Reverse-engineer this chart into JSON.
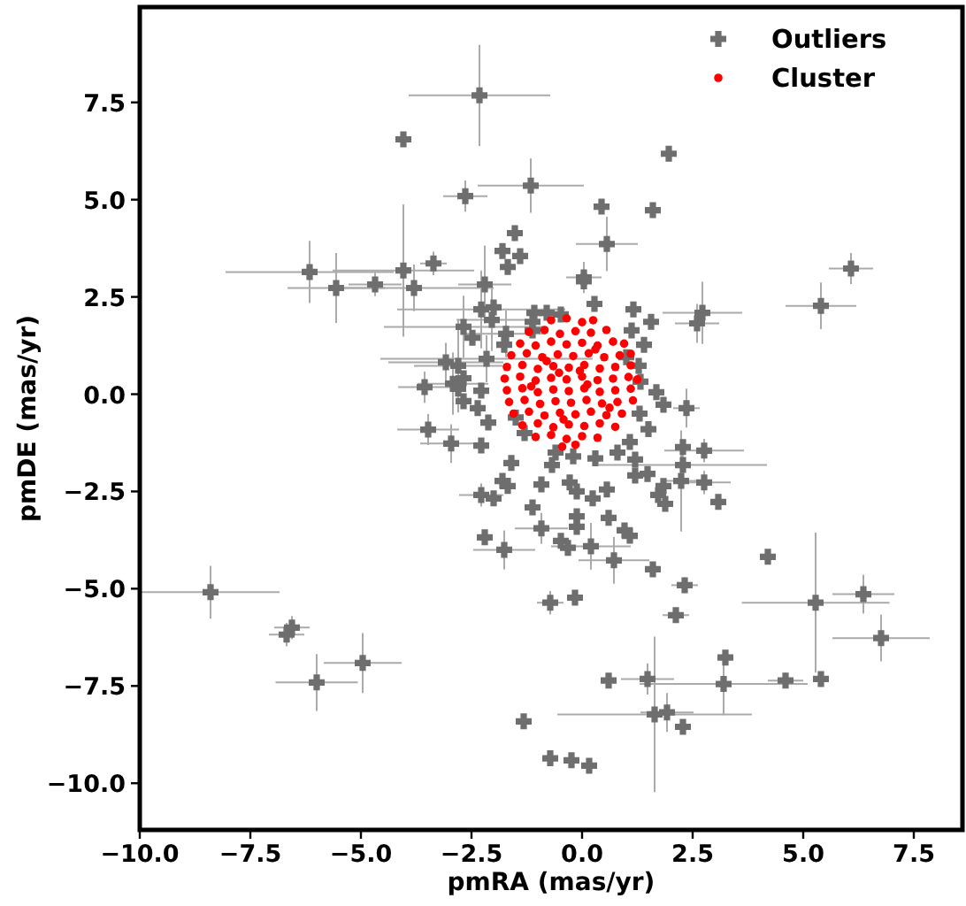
{
  "chart_data": {
    "type": "scatter",
    "xlabel": "pmRA (mas/yr)",
    "ylabel": "pmDE (mas/yr)",
    "legend": "top right",
    "xlim": [
      -10,
      8.6
    ],
    "ylim": [
      -11.2,
      9.95
    ],
    "xticks": [
      {
        "value": -10,
        "label": "−10.0"
      },
      {
        "value": -7.5,
        "label": "−7.5"
      },
      {
        "value": -5,
        "label": "−5.0"
      },
      {
        "value": -2.5,
        "label": "−2.5"
      },
      {
        "value": 0,
        "label": "0.0"
      },
      {
        "value": 2.5,
        "label": "2.5"
      },
      {
        "value": 5,
        "label": "5.0"
      },
      {
        "value": 7.5,
        "label": "7.5"
      }
    ],
    "yticks": [
      {
        "value": 7.5,
        "label": "7.5"
      },
      {
        "value": 5,
        "label": "5.0"
      },
      {
        "value": 2.5,
        "label": "2.5"
      },
      {
        "value": 0,
        "label": "0.0"
      },
      {
        "value": -2.5,
        "label": "−2.5"
      },
      {
        "value": -5,
        "label": "−5.0"
      },
      {
        "value": -7.5,
        "label": "−7.5"
      },
      {
        "value": -10,
        "label": "−10.0"
      }
    ],
    "series": [
      {
        "name": "Outliers",
        "color": "#6e6e6e",
        "marker": "cross",
        "x": [
          -2.32,
          -4.04,
          -2.64,
          -1.16,
          -1.52,
          -1.8,
          -1.4,
          -1.68,
          -6.16,
          -5.56,
          -4.68,
          -4.04,
          -3.8,
          -3.36,
          -2.2,
          -2.28,
          -2.0,
          -2.04,
          -2.68,
          -2.48,
          -1.72,
          -1.76,
          -1.08,
          -1.12,
          -2.16,
          -3.08,
          -2.8,
          -2.68,
          -2.92,
          -3.56,
          -2.8,
          -2.28,
          -2.68,
          -2.36,
          -3.48,
          -2.96,
          -2.28,
          -2.12,
          -1.6,
          -1.8,
          -1.68,
          -2.28,
          -2.0,
          -1.12,
          -0.92,
          -2.2,
          -1.76,
          -0.92,
          -8.4,
          -6.56,
          -6.68,
          -4.96,
          -6.0,
          -1.32,
          1.96,
          0.44,
          1.6,
          0.56,
          0.04,
          0.04,
          6.08,
          5.4,
          2.72,
          2.6,
          1.16,
          1.56,
          1.12,
          0.28,
          -0.8,
          -0.48,
          1.4,
          1.0,
          1.28,
          1.32,
          1.68,
          2.36,
          1.84,
          -1.12,
          2.76,
          2.28,
          2.28,
          2.24,
          2.76,
          3.08,
          1.84,
          1.72,
          1.88,
          1.48,
          1.2,
          1.08,
          1.2,
          0.56,
          0.24,
          -0.12,
          -0.28,
          -0.68,
          -0.12,
          -0.12,
          -0.48,
          -0.32,
          0.2,
          0.6,
          0.96,
          1.08,
          0.72,
          1.6,
          2.32,
          2.12,
          -0.72,
          -0.16,
          4.2,
          5.28,
          6.36,
          6.76,
          3.24,
          3.2,
          4.6,
          5.4,
          1.48,
          0.6,
          1.64,
          1.92,
          2.28,
          -0.72,
          -0.24,
          0.16,
          -0.6,
          -0.2,
          0.3,
          0.8,
          -1.3,
          -1.5,
          1.3,
          1.5
        ],
        "values": [
          7.68,
          6.55,
          5.09,
          5.36,
          4.14,
          3.68,
          3.55,
          3.27,
          3.14,
          2.73,
          2.82,
          3.18,
          2.73,
          3.36,
          2.82,
          2.18,
          2.23,
          1.91,
          1.73,
          1.45,
          1.55,
          1.27,
          2.09,
          1.64,
          0.91,
          0.82,
          0.73,
          0.41,
          0.27,
          0.18,
          0.14,
          0.09,
          -0.18,
          -0.36,
          -0.91,
          -1.27,
          -1.32,
          -0.73,
          -1.77,
          -2.23,
          -2.36,
          -2.59,
          -2.68,
          -2.91,
          -3.45,
          -3.68,
          -4.0,
          -2.32,
          -5.09,
          -6.0,
          -6.18,
          -6.91,
          -7.41,
          -8.41,
          6.18,
          4.82,
          4.73,
          3.86,
          3.0,
          2.9,
          3.23,
          2.27,
          2.09,
          1.82,
          2.18,
          1.86,
          1.64,
          2.32,
          2.09,
          2.05,
          1.27,
          0.95,
          0.73,
          0.32,
          0.05,
          -0.36,
          -0.27,
          1.86,
          -1.45,
          -1.36,
          -1.82,
          -2.23,
          -2.27,
          -2.77,
          -2.36,
          -2.59,
          -2.82,
          -2.05,
          -2.09,
          -1.23,
          -1.68,
          -2.45,
          -2.68,
          -2.5,
          -2.27,
          -1.82,
          -3.14,
          -3.41,
          -3.77,
          -3.95,
          -3.91,
          -3.18,
          -3.5,
          -3.64,
          -4.27,
          -4.5,
          -4.91,
          -5.68,
          -5.36,
          -5.23,
          -4.18,
          -5.36,
          -5.14,
          -6.27,
          -6.77,
          -7.45,
          -7.36,
          -7.32,
          -7.32,
          -7.36,
          -8.23,
          -8.18,
          -8.55,
          -9.36,
          -9.41,
          -9.55,
          -1.5,
          -1.6,
          -1.65,
          -1.5,
          -1.0,
          -0.6,
          -0.5,
          -0.9
        ],
        "xerrors": [
          1.6,
          0.15,
          0.5,
          1.2,
          null,
          null,
          null,
          null,
          1.9,
          1.1,
          0.6,
          1.6,
          1.8,
          0.3,
          0.6,
          1.9,
          null,
          0.8,
          1.8,
          null,
          0.9,
          null,
          null,
          null,
          2.4,
          1.3,
          1.0,
          null,
          0.8,
          0.6,
          null,
          null,
          null,
          null,
          0.7,
          0.7,
          null,
          null,
          null,
          null,
          null,
          0.5,
          null,
          null,
          0.6,
          null,
          0.7,
          null,
          1.56,
          0.4,
          0.4,
          0.88,
          0.93,
          null,
          null,
          null,
          null,
          0.7,
          0.4,
          null,
          0.5,
          0.8,
          0.9,
          0.5,
          null,
          null,
          null,
          null,
          null,
          null,
          null,
          null,
          null,
          null,
          null,
          0.3,
          null,
          null,
          0.9,
          null,
          1.9,
          0.4,
          0.6,
          null,
          null,
          null,
          null,
          null,
          null,
          null,
          null,
          null,
          null,
          null,
          null,
          null,
          null,
          null,
          null,
          null,
          0.9,
          null,
          null,
          null,
          0.8,
          null,
          0.3,
          0.3,
          0.3,
          null,
          null,
          1.67,
          0.7,
          1.1,
          null,
          1.9,
          0.4,
          null,
          0.6,
          null,
          2.2,
          0.6,
          null,
          null,
          null,
          null,
          null,
          null,
          null,
          null,
          null,
          null,
          null,
          null
        ],
        "errors": [
          1.3,
          0.2,
          0.4,
          0.7,
          null,
          null,
          null,
          null,
          0.8,
          0.9,
          0.3,
          1.7,
          0.6,
          0.3,
          1.0,
          1.0,
          null,
          0.8,
          0.8,
          null,
          0.6,
          null,
          null,
          null,
          0.6,
          0.5,
          1.2,
          null,
          0.8,
          0.4,
          null,
          null,
          null,
          null,
          0.4,
          0.5,
          null,
          null,
          null,
          null,
          null,
          0.3,
          null,
          null,
          0.4,
          null,
          0.5,
          null,
          0.68,
          0.3,
          0.3,
          0.77,
          0.73,
          null,
          null,
          null,
          null,
          0.7,
          0.4,
          null,
          0.4,
          0.6,
          0.8,
          0.5,
          null,
          null,
          null,
          null,
          null,
          null,
          null,
          null,
          null,
          null,
          null,
          0.5,
          null,
          null,
          0.3,
          null,
          0.3,
          1.3,
          0.3,
          null,
          null,
          null,
          null,
          null,
          null,
          null,
          null,
          null,
          null,
          null,
          null,
          null,
          null,
          null,
          null,
          null,
          0.6,
          null,
          null,
          null,
          0.6,
          null,
          0.2,
          0.2,
          0.3,
          null,
          null,
          1.8,
          0.5,
          0.6,
          null,
          0.8,
          0.2,
          null,
          0.4,
          null,
          2.0,
          0.5,
          null,
          null,
          null,
          null,
          null,
          null,
          null,
          null,
          null,
          null,
          null,
          null
        ]
      },
      {
        "name": "Cluster",
        "color": "#ff0000",
        "marker": "circle",
        "x": [
          -0.7,
          -0.35,
          0.0,
          0.25,
          -1.2,
          -0.85,
          -0.5,
          -0.15,
          0.2,
          0.55,
          -1.4,
          -1.05,
          -0.7,
          -0.35,
          0.0,
          0.35,
          0.7,
          0.95,
          -1.6,
          -1.25,
          -0.9,
          -0.55,
          -0.2,
          0.15,
          0.5,
          0.85,
          1.1,
          -1.7,
          -1.35,
          -1.0,
          -0.65,
          -0.3,
          0.05,
          0.4,
          0.75,
          1.1,
          -1.75,
          -1.4,
          -1.05,
          -0.7,
          -0.35,
          0.0,
          0.35,
          0.7,
          1.05,
          1.25,
          -1.7,
          -1.35,
          -1.0,
          -0.65,
          -0.3,
          0.05,
          0.4,
          0.75,
          1.1,
          -1.65,
          -1.3,
          -0.95,
          -0.6,
          -0.25,
          0.1,
          0.45,
          0.8,
          1.15,
          -1.55,
          -1.2,
          -0.85,
          -0.5,
          -0.15,
          0.2,
          0.55,
          0.9,
          -1.35,
          -1.0,
          -0.65,
          -0.3,
          0.05,
          0.4,
          0.75,
          -1.05,
          -0.7,
          -0.35,
          0.0,
          0.35,
          -0.45,
          -0.15,
          -0.52,
          0.12,
          -0.8,
          0.3,
          -1.15,
          0.62,
          -0.05,
          -0.42
        ],
        "values": [
          1.9,
          1.95,
          1.85,
          1.9,
          1.6,
          1.65,
          1.55,
          1.62,
          1.58,
          1.65,
          1.3,
          1.25,
          1.35,
          1.28,
          1.32,
          1.25,
          1.35,
          1.3,
          1.0,
          1.05,
          0.95,
          1.02,
          0.98,
          1.05,
          0.95,
          1.0,
          1.04,
          0.7,
          0.75,
          0.65,
          0.72,
          0.68,
          0.75,
          0.66,
          0.7,
          0.74,
          0.4,
          0.45,
          0.35,
          0.42,
          0.38,
          0.45,
          0.36,
          0.4,
          0.44,
          0.38,
          0.1,
          0.15,
          0.05,
          0.12,
          0.08,
          0.15,
          0.06,
          0.1,
          0.14,
          -0.2,
          -0.15,
          -0.25,
          -0.18,
          -0.22,
          -0.15,
          -0.24,
          -0.2,
          -0.16,
          -0.5,
          -0.45,
          -0.55,
          -0.48,
          -0.52,
          -0.45,
          -0.54,
          -0.5,
          -0.8,
          -0.75,
          -0.85,
          -0.78,
          -0.82,
          -0.75,
          -0.84,
          -1.1,
          -1.05,
          -1.15,
          -1.08,
          -1.12,
          -1.35,
          -1.3,
          0.55,
          0.25,
          0.85,
          1.15,
          0.2,
          -0.35,
          0.6,
          -0.65
        ]
      }
    ]
  }
}
